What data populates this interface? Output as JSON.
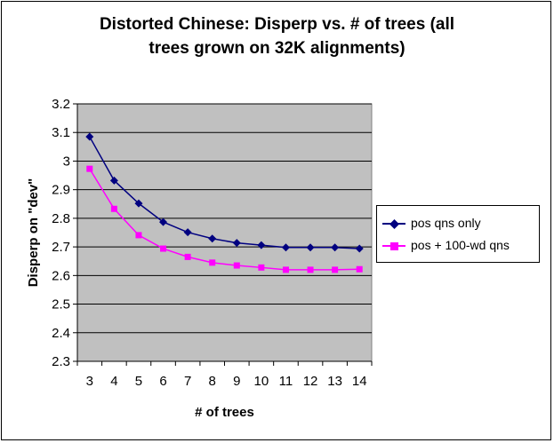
{
  "chart_data": {
    "type": "line",
    "title_lines": [
      "Distorted Chinese: Disperp vs. # of trees (all",
      "trees grown on 32K alignments)"
    ],
    "xlabel": "# of trees",
    "ylabel": "Disperp on \"dev\"",
    "categories": [
      "3",
      "4",
      "5",
      "6",
      "7",
      "8",
      "9",
      "10",
      "11",
      "12",
      "13",
      "14"
    ],
    "ylim": [
      2.3,
      3.2
    ],
    "yticks": [
      "2.3",
      "2.4",
      "2.5",
      "2.6",
      "2.7",
      "2.8",
      "2.9",
      "3",
      "3.1",
      "3.2"
    ],
    "grid": "horizontal",
    "plot_background": "#c0c0c0",
    "legend_position": "right",
    "series": [
      {
        "name": "pos qns only",
        "color": "#000080",
        "marker": "diamond",
        "values": [
          3.085,
          2.932,
          2.852,
          2.787,
          2.751,
          2.729,
          2.714,
          2.706,
          2.698,
          2.698,
          2.698,
          2.694
        ]
      },
      {
        "name": "pos + 100-wd qns",
        "color": "#ff00ff",
        "marker": "square",
        "values": [
          2.973,
          2.833,
          2.741,
          2.694,
          2.665,
          2.645,
          2.635,
          2.628,
          2.62,
          2.62,
          2.62,
          2.622
        ]
      }
    ]
  }
}
